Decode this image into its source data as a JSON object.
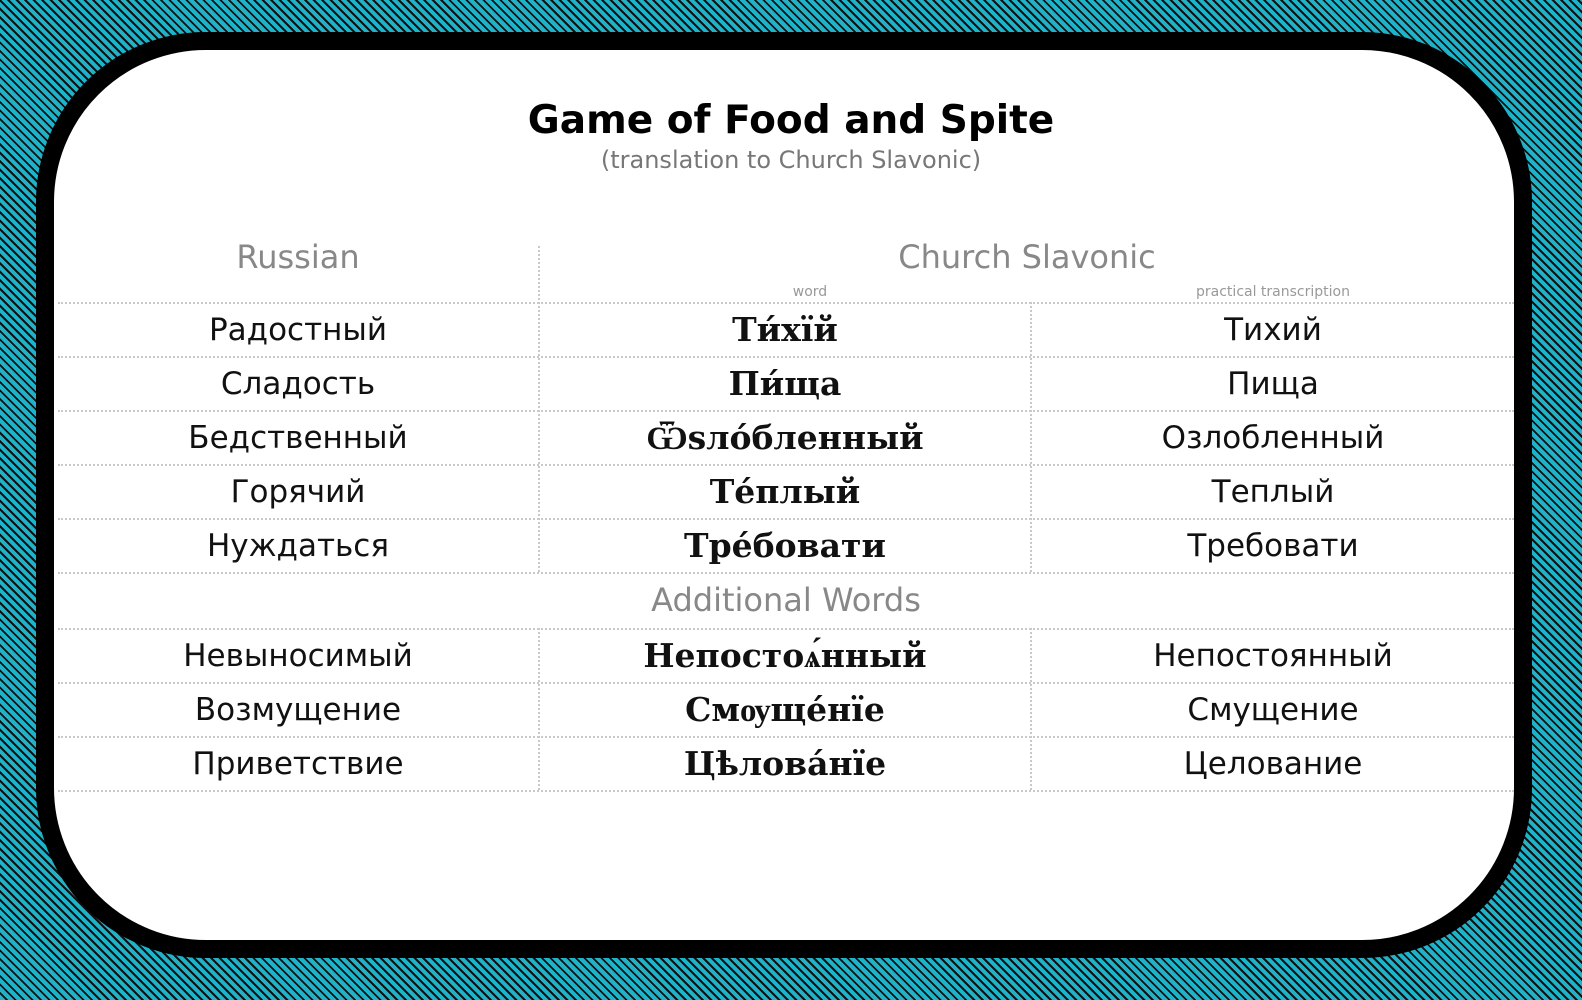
{
  "title": "Game of Food and Spite",
  "subtitle": "(translation to Church Slavonic)",
  "headers": {
    "russian": "Russian",
    "church_slavonic": "Church Slavonic",
    "word": "word",
    "practical_transcription": "practical transcription"
  },
  "rows": [
    {
      "russian": "Радостный",
      "slavonic": "Ти́хїй",
      "transcription": "Тихий"
    },
    {
      "russian": "Сладость",
      "slavonic": "Пи́ща",
      "transcription": "Пища"
    },
    {
      "russian": "Бедственный",
      "slavonic": "Ѿѕло́бленный",
      "transcription": "Озлобленный"
    },
    {
      "russian": "Горячий",
      "slavonic": "Те́плый",
      "transcription": "Теплый"
    },
    {
      "russian": "Нуждаться",
      "slavonic": "Тре́бовати",
      "transcription": "Требовати"
    }
  ],
  "additional_title": "Additional Words",
  "additional_rows": [
    {
      "russian": "Невыносимый",
      "slavonic": "Непостоѧ́нный",
      "transcription": "Непостоянный"
    },
    {
      "russian": "Возмущение",
      "slavonic": "Смѹще́нїе",
      "transcription": "Смущение"
    },
    {
      "russian": "Приветствие",
      "slavonic": "Цѣлова́нїе",
      "transcription": "Целование"
    }
  ]
}
